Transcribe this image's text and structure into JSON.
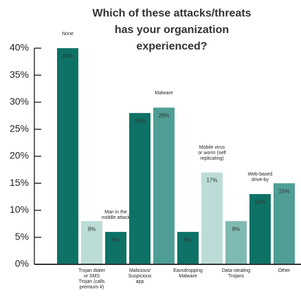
{
  "chart_data": {
    "type": "bar",
    "title": "Which of these attacks/threats has your organization experienced?",
    "categories": [
      null,
      "Trojan dialer or SMS Trojan (calls premium #)",
      null,
      "Malicious/ Suspicious app",
      null,
      "Eavsdropping Malware",
      null,
      "Data-stealing Trojans",
      null,
      "Other"
    ],
    "annotations": [
      "None",
      null,
      "Man in the middle attack",
      null,
      "Malware",
      null,
      "Mobile virus or worm (self replicating)",
      null,
      "Web-based drive-by",
      null
    ],
    "values": [
      40,
      8,
      6,
      28,
      29,
      6,
      17,
      8,
      13,
      15
    ],
    "value_labels": [
      "40%",
      "8%",
      "6%",
      "28%",
      "29%",
      "6%",
      "17%",
      "8%",
      "13%",
      "15%"
    ],
    "colors": [
      "#0e7266",
      "#bcdcd7",
      "#0e7266",
      "#0e7266",
      "#4f9e95",
      "#0e7266",
      "#bcdcd7",
      "#7fbab2",
      "#0e7266",
      "#4f9e95"
    ],
    "ylim": [
      0,
      40
    ],
    "yticks": [
      {
        "value": 0,
        "label": "0%"
      },
      {
        "value": 5,
        "label": "5%"
      },
      {
        "value": 10,
        "label": "10%"
      },
      {
        "value": 15,
        "label": "15%"
      },
      {
        "value": 20,
        "label": "20%"
      },
      {
        "value": 25,
        "label": "25%"
      },
      {
        "value": 30,
        "label": "30%"
      },
      {
        "value": 35,
        "label": "35%"
      },
      {
        "value": 40,
        "label": "40%"
      }
    ],
    "grid": false
  }
}
